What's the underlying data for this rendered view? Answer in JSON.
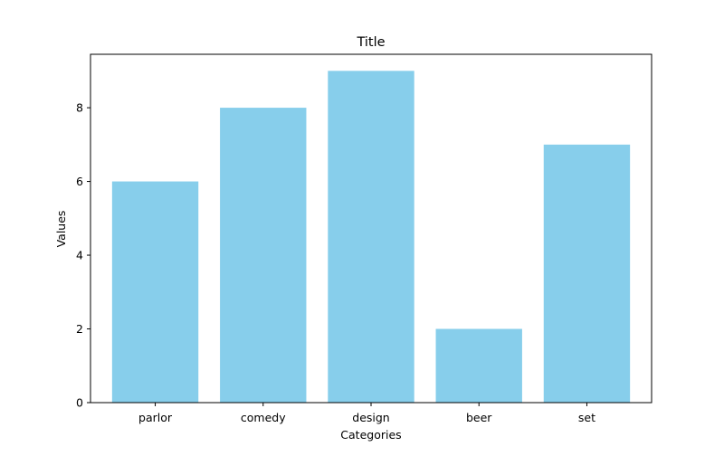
{
  "chart_data": {
    "type": "bar",
    "title": "Title",
    "xlabel": "Categories",
    "ylabel": "Values",
    "categories": [
      "parlor",
      "comedy",
      "design",
      "beer",
      "set"
    ],
    "values": [
      6,
      8,
      9,
      2,
      7
    ],
    "ylim": [
      0,
      9.45
    ],
    "yticks": [
      0,
      2,
      4,
      6,
      8
    ],
    "grid": false,
    "bar_color": "#87CEEB"
  }
}
